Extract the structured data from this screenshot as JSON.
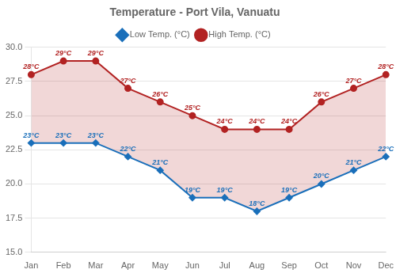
{
  "chart_data": {
    "type": "line",
    "title": "Temperature - Port Vila, Vanuatu",
    "categories": [
      "Jan",
      "Feb",
      "Mar",
      "Apr",
      "May",
      "Jun",
      "Jul",
      "Aug",
      "Sep",
      "Oct",
      "Nov",
      "Dec"
    ],
    "series": [
      {
        "name": "Low Temp. (°C)",
        "color": "#1a6fba",
        "marker": "diamond",
        "values": [
          23,
          23,
          23,
          22,
          21,
          19,
          19,
          18,
          19,
          20,
          21,
          22
        ],
        "value_labels": [
          "23°C",
          "23°C",
          "23°C",
          "22°C",
          "21°C",
          "19°C",
          "19°C",
          "18°C",
          "19°C",
          "20°C",
          "21°C",
          "22°C"
        ]
      },
      {
        "name": "High Temp. (°C)",
        "color": "#b22222",
        "marker": "circle",
        "values": [
          28,
          29,
          29,
          27,
          26,
          25,
          24,
          24,
          24,
          26,
          27,
          28
        ],
        "value_labels": [
          "28°C",
          "29°C",
          "29°C",
          "27°C",
          "26°C",
          "25°C",
          "24°C",
          "24°C",
          "24°C",
          "26°C",
          "27°C",
          "28°C"
        ]
      }
    ],
    "ylim": [
      15.0,
      30.0
    ],
    "yticks": [
      {
        "value": 15,
        "label": "15.0"
      },
      17.5,
      {
        "value": 20,
        "label": "20.0"
      },
      22.5,
      {
        "value": 25,
        "label": "25.0"
      },
      27.5,
      {
        "value": 30,
        "label": "30.0"
      }
    ],
    "grid": true,
    "legend": "top",
    "data_labels": true
  }
}
